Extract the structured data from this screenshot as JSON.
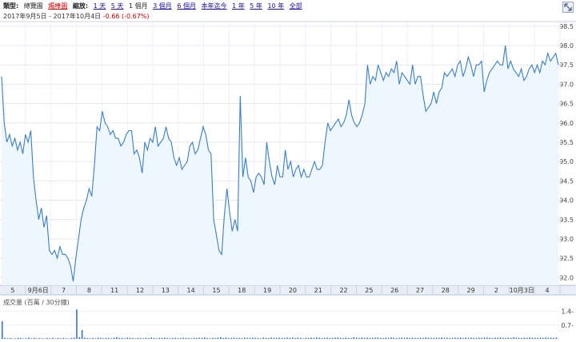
{
  "toolbar": {
    "type_label": "類型:",
    "type_options": [
      "總覽圖",
      "燭棒圖"
    ],
    "zoom_label": "縮放:",
    "zoom_options": [
      "1 天",
      "5 天",
      "1 個月",
      "3 個月",
      "6 個月",
      "本年迄今",
      "1 年",
      "5 年",
      "10 年",
      "全部"
    ],
    "zoom_selected": "1 個月",
    "toggle_icon": "expand-toggle-icon"
  },
  "range": {
    "start": "2017年9月5日",
    "separator": "-",
    "end": "2017年10月4日",
    "change": "-0.66 (-0.67%)"
  },
  "volume_label": "成交量 (百萬 / 30分鐘)",
  "colors": {
    "line": "#3c7ec4",
    "fill": "#eef7fd",
    "volume": "#2f6fb8",
    "change_negative": "#cc0000"
  },
  "chart_data": {
    "type": "line",
    "title": "",
    "xlabel": "",
    "ylabel": "",
    "x_ticks": [
      "5",
      "9月6日",
      "7",
      "8",
      "11",
      "12",
      "13",
      "14",
      "15",
      "18",
      "19",
      "20",
      "21",
      "22",
      "25",
      "26",
      "27",
      "28",
      "29",
      "2",
      "10月3日",
      "4"
    ],
    "ylim": [
      91.8,
      98.6
    ],
    "y_ticks": [
      "92.0",
      "92.5",
      "93.0",
      "93.5",
      "94.0",
      "94.5",
      "95.0",
      "95.5",
      "96.0",
      "96.5",
      "97.0",
      "97.5",
      "98.0",
      "98.5"
    ],
    "grid": true,
    "series": [
      {
        "values": [
          97.2,
          96.0,
          95.5,
          95.7,
          95.4,
          95.6,
          95.3,
          95.5,
          95.2,
          95.7,
          95.5,
          95.8,
          94.6,
          94.0,
          93.5,
          93.8,
          93.3,
          93.6,
          92.7,
          92.6,
          92.7,
          92.5,
          92.8,
          92.6,
          92.6,
          92.5,
          92.3,
          91.9,
          92.5,
          93.0,
          93.5,
          93.8,
          94.0,
          94.3,
          94.1,
          94.9,
          95.9,
          95.8,
          96.3,
          96.0,
          95.9,
          95.7,
          95.8,
          95.6,
          95.6,
          95.4,
          95.5,
          95.7,
          95.8,
          95.8,
          95.2,
          95.3,
          95.1,
          94.7,
          95.5,
          95.3,
          95.6,
          95.5,
          95.9,
          95.4,
          95.5,
          95.6,
          95.9,
          95.6,
          95.5,
          95.1,
          94.9,
          95.1,
          94.8,
          94.9,
          95.0,
          95.4,
          95.5,
          95.2,
          95.3,
          95.6,
          95.9,
          95.7,
          95.3,
          95.2,
          93.5,
          93.1,
          92.7,
          92.6,
          93.6,
          94.3,
          93.7,
          93.2,
          93.5,
          93.2,
          96.7,
          94.6,
          95.1,
          94.6,
          94.5,
          94.2,
          94.6,
          94.7,
          94.6,
          94.4,
          95.5,
          95.0,
          94.6,
          94.4,
          94.9,
          94.6,
          94.6,
          95.3,
          94.8,
          95.0,
          94.6,
          94.8,
          94.9,
          94.6,
          94.8,
          94.6,
          94.6,
          94.8,
          95.0,
          94.8,
          94.8,
          94.9,
          95.5,
          96.0,
          95.8,
          95.9,
          96.0,
          96.1,
          95.9,
          96.0,
          96.2,
          96.6,
          96.2,
          96.0,
          95.9,
          96.0,
          96.2,
          96.5,
          97.5,
          97.0,
          97.2,
          97.1,
          97.5,
          97.3,
          97.1,
          97.3,
          97.2,
          97.4,
          97.3,
          97.6,
          97.0,
          97.3,
          97.2,
          97.1,
          97.0,
          97.5,
          97.0,
          97.2,
          97.2,
          96.7,
          96.3,
          96.4,
          96.5,
          96.8,
          96.5,
          96.8,
          96.9,
          97.3,
          97.2,
          97.3,
          97.4,
          97.2,
          97.5,
          97.6,
          97.2,
          97.4,
          97.7,
          97.5,
          97.2,
          97.5,
          97.5,
          97.6,
          96.8,
          97.1,
          97.3,
          97.4,
          97.5,
          97.6,
          97.5,
          97.5,
          98.0,
          97.4,
          97.6,
          97.4,
          97.3,
          97.2,
          97.4,
          97.1,
          97.2,
          97.4,
          97.5,
          97.3,
          97.5,
          97.3,
          97.6,
          97.5,
          97.8,
          97.6,
          97.7,
          97.8,
          97.5
        ]
      }
    ],
    "volume": {
      "ylim": [
        0,
        1.55
      ],
      "y_ticks": [
        "0.7-",
        "1.4-"
      ],
      "values": [
        0.9,
        0.05,
        0.03,
        0.04,
        0.02,
        0.03,
        0.05,
        0.04,
        0.02,
        0.03,
        0.06,
        0.03,
        0.05,
        0.03,
        0.04,
        0.03,
        0.02,
        0.04,
        0.03,
        0.05,
        0.02,
        0.04,
        0.03,
        0.05,
        0.03,
        0.02,
        0.04,
        0.06,
        1.5,
        0.08,
        0.45,
        0.06,
        0.04,
        0.03,
        0.05,
        0.03,
        0.06,
        0.04,
        0.03,
        0.05,
        0.04,
        0.03,
        0.06,
        0.08,
        0.05,
        0.04,
        0.03,
        0.06,
        0.05,
        0.04,
        0.03,
        0.05,
        0.04,
        0.03,
        0.05,
        0.04,
        0.07,
        0.04,
        0.03,
        0.05,
        0.04,
        0.06,
        0.05,
        0.03,
        0.04,
        0.05,
        0.03,
        0.04,
        0.06,
        0.05,
        0.04,
        0.03,
        0.05,
        0.04,
        0.06,
        0.05,
        0.07,
        0.04,
        0.03,
        0.05,
        0.04,
        0.06,
        0.08,
        0.05,
        0.07,
        0.04,
        0.05,
        0.06,
        0.04,
        0.05,
        0.03,
        0.06,
        0.05,
        0.04,
        0.06,
        0.05,
        0.04,
        0.03,
        0.06,
        0.05,
        0.04,
        0.07,
        0.05,
        0.04,
        0.06,
        0.05,
        0.04,
        0.06,
        0.05,
        0.07,
        0.04,
        0.06,
        0.05,
        0.03,
        0.05,
        0.04,
        0.06,
        0.05,
        0.07,
        0.06,
        0.04,
        0.05,
        0.06,
        0.04,
        0.05,
        0.06,
        0.07,
        0.05,
        0.04,
        0.06,
        0.05,
        0.04,
        0.08,
        0.06,
        0.05,
        0.07,
        0.05,
        0.06,
        0.04,
        0.05,
        0.06,
        0.07,
        0.05,
        0.04,
        0.06,
        0.05,
        0.07,
        0.06,
        0.04,
        0.05,
        0.06,
        0.05,
        0.07,
        0.04,
        0.06,
        0.05,
        0.04,
        0.06,
        0.05,
        0.07,
        0.06,
        0.05,
        0.04,
        0.06,
        0.05,
        0.07,
        0.05,
        0.06,
        0.04,
        0.05,
        0.06,
        0.05,
        0.07,
        0.04,
        0.06,
        0.05,
        0.06,
        0.05,
        0.04,
        0.06,
        0.05,
        0.07,
        0.06,
        0.05,
        0.04,
        0.06,
        0.05,
        0.07,
        0.05,
        0.04,
        0.06,
        0.05,
        0.08,
        0.06,
        0.05,
        0.04,
        0.06,
        0.05,
        0.07,
        0.06,
        0.05,
        0.04,
        0.06,
        0.05,
        0.07,
        0.05,
        0.06,
        0.05,
        0.07
      ]
    }
  }
}
